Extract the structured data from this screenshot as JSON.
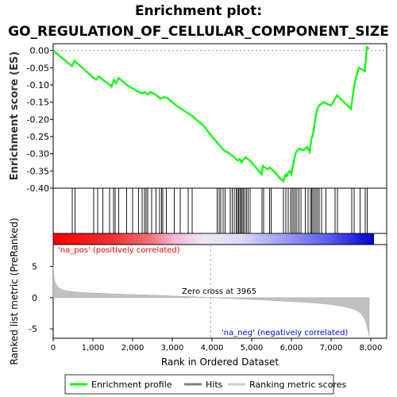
{
  "chart_data": {
    "type": "line",
    "title": "Enrichment plot:",
    "subtitle": "GO_REGULATION_OF_CELLULAR_COMPONENT_SIZE",
    "enrichment": {
      "ylabel": "Enrichment score (ES)",
      "ylim": [
        -0.4,
        0.02
      ],
      "yticks": [
        "0.00",
        "-0.05",
        "-0.10",
        "-0.15",
        "-0.20",
        "-0.25",
        "-0.30",
        "-0.35",
        "-0.40"
      ],
      "x": [
        0,
        470,
        540,
        1020,
        1080,
        1150,
        1250,
        1430,
        1470,
        1530,
        1580,
        1650,
        1850,
        2000,
        2150,
        2250,
        2300,
        2380,
        2450,
        2600,
        2700,
        2800,
        2900,
        3100,
        3300,
        3500,
        3800,
        4000,
        4150,
        4300,
        4450,
        4600,
        4650,
        4700,
        4750,
        4800,
        4850,
        4900,
        5000,
        5250,
        5280,
        5400,
        5450,
        5600,
        5700,
        5800,
        5850,
        5880,
        5920,
        5960,
        6000,
        6020,
        6050,
        6080,
        6120,
        6200,
        6300,
        6400,
        6460,
        6500,
        6550,
        6600,
        6650,
        6700,
        6800,
        7000,
        7100,
        7150,
        7500,
        7550,
        7600,
        7700,
        7850,
        7900,
        7960
      ],
      "y": [
        0.0,
        -0.045,
        -0.03,
        -0.08,
        -0.085,
        -0.075,
        -0.085,
        -0.1,
        -0.105,
        -0.085,
        -0.095,
        -0.08,
        -0.1,
        -0.11,
        -0.12,
        -0.125,
        -0.12,
        -0.128,
        -0.12,
        -0.13,
        -0.14,
        -0.135,
        -0.14,
        -0.16,
        -0.175,
        -0.19,
        -0.22,
        -0.25,
        -0.27,
        -0.29,
        -0.3,
        -0.315,
        -0.32,
        -0.315,
        -0.325,
        -0.315,
        -0.31,
        -0.315,
        -0.325,
        -0.36,
        -0.335,
        -0.345,
        -0.34,
        -0.355,
        -0.37,
        -0.38,
        -0.36,
        -0.365,
        -0.355,
        -0.35,
        -0.36,
        -0.345,
        -0.33,
        -0.31,
        -0.295,
        -0.285,
        -0.29,
        -0.28,
        -0.295,
        -0.26,
        -0.24,
        -0.2,
        -0.17,
        -0.16,
        -0.15,
        -0.16,
        -0.14,
        -0.13,
        -0.17,
        -0.13,
        -0.09,
        -0.05,
        -0.06,
        0.01,
        0.005
      ]
    },
    "hits": [
      480,
      550,
      1020,
      1120,
      1250,
      1420,
      1520,
      1560,
      1650,
      1850,
      2000,
      2150,
      2240,
      2300,
      2340,
      2380,
      2480,
      2590,
      2680,
      2730,
      2760,
      2850,
      3050,
      3200,
      3400,
      3500,
      4130,
      4180,
      4220,
      4280,
      4330,
      4460,
      4510,
      4560,
      4610,
      4640,
      4670,
      4700,
      4730,
      4760,
      4790,
      4830,
      4870,
      4910,
      4960,
      5260,
      5300,
      5450,
      5490,
      5800,
      5860,
      5920,
      5980,
      6020,
      6060,
      6100,
      6140,
      6190,
      6240,
      6350,
      6420,
      6480,
      6510,
      6540,
      6580,
      6620,
      6660,
      6700,
      6760,
      6870,
      7100,
      7160,
      7520,
      7580,
      7730,
      7860,
      7910
    ],
    "colorbar_label_pos": "'na_pos' (positively correlated)",
    "colorbar_label_neg": "'na_neg' (negatively correlated)",
    "metric": {
      "ylabel": "Ranked list metric (PreRanked)",
      "xlabel": "Rank in Ordered Dataset",
      "ylim": [
        -6.5,
        8.5
      ],
      "yticks": [
        "5",
        "0",
        "-5"
      ],
      "xticks": [
        "0",
        "1,000",
        "2,000",
        "3,000",
        "4,000",
        "5,000",
        "6,000",
        "7,000",
        "8,000"
      ],
      "xlim": [
        0,
        8400
      ],
      "x": [
        0,
        20,
        50,
        100,
        200,
        400,
        800,
        1500,
        2500,
        3500,
        3965,
        4500,
        5500,
        6500,
        7000,
        7300,
        7600,
        7750,
        7850,
        7900,
        7940,
        7960
      ],
      "y": [
        5.2,
        3.2,
        2.4,
        1.8,
        1.3,
        1.0,
        0.8,
        0.6,
        0.4,
        0.15,
        0.0,
        -0.15,
        -0.45,
        -0.8,
        -1.1,
        -1.4,
        -1.9,
        -2.5,
        -3.5,
        -4.5,
        -5.5,
        -6.2
      ],
      "zero_cross_label": "Zero cross at 3965",
      "zero_cross": 3965
    },
    "legend": [
      "Enrichment profile",
      "Hits",
      "Ranking metric scores"
    ],
    "colors": {
      "profile": "#00ff00",
      "hits": "#000000",
      "metric": "#c0c0c0",
      "pos_label": "#ff0000",
      "neg_label": "#0000ff"
    }
  }
}
